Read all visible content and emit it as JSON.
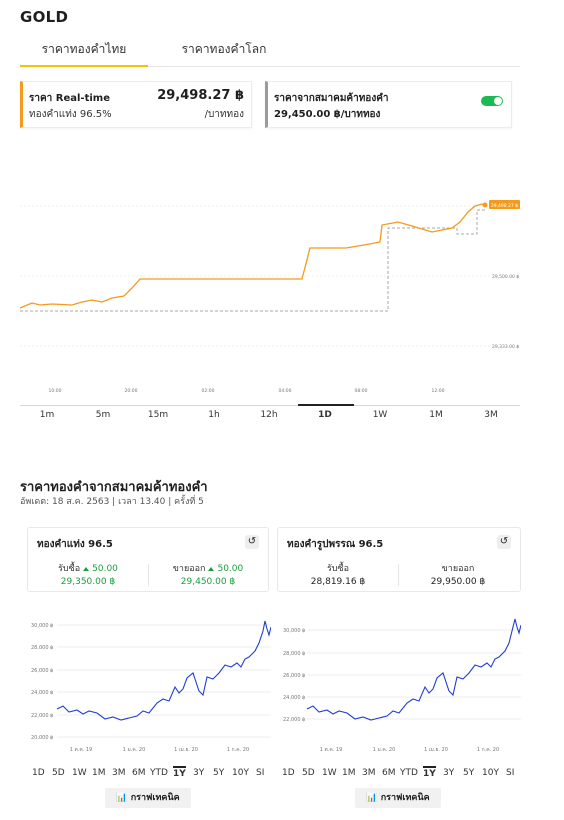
{
  "header": {
    "title": "GOLD"
  },
  "tabs": [
    {
      "label": "ราคาทองคำไทย"
    },
    {
      "label": "ราคาทองคำโลก"
    }
  ],
  "realtime_card": {
    "label": "ราคา Real-time",
    "sub": "ทองคำแท่ง 96.5%",
    "price": "29,498.27 ฿",
    "unit": "/บาททอง"
  },
  "association_card": {
    "label": "ราคาจากสมาคมค้าทองคำ",
    "price": "29,450.00 ฿/บาททอง"
  },
  "main_chart": {
    "x_ticks": [
      "10:00",
      "20:00",
      "02:00",
      "04:00",
      "08:00",
      "12:00"
    ],
    "y_ticks": [
      "29,500.00 ฿",
      "29,333.00 ฿"
    ],
    "current_tag": "29,498.27 ฿"
  },
  "ranges": [
    "1m",
    "5m",
    "15m",
    "1h",
    "12h",
    "1D",
    "1W",
    "1M",
    "3M"
  ],
  "active_range": "1D",
  "section": {
    "title": "ราคาทองคำจากสมาคมค้าทองคำ",
    "subtitle": "อัพเดต: 18 ส.ค. 2563 | เวลา 13.40 | ครั้งที่ 5"
  },
  "cards": [
    {
      "title": "ทองคำแท่ง 96.5",
      "buy_label": "รับซื้อ",
      "buy_change": "50.00",
      "buy_price": "29,350.00 ฿",
      "sell_label": "ขายออก",
      "sell_change": "50.00",
      "sell_price": "29,450.00 ฿"
    },
    {
      "title": "ทองคำรูปพรรณ 96.5",
      "buy_label": "รับซื้อ",
      "buy_price": "28,819.16 ฿",
      "sell_label": "ขายออก",
      "sell_price": "29,950.00 ฿"
    }
  ],
  "mini_chart": {
    "y_ticks": [
      "30,000 ฿",
      "28,000 ฿",
      "26,000 ฿",
      "24,000 ฿",
      "22,000 ฿",
      "20,000 ฿"
    ],
    "x_ticks": [
      "1 ต.ค. 19",
      "1 ม.ค. 20",
      "1 เม.ย. 20",
      "1 ก.ค. 20"
    ]
  },
  "mini_ranges": [
    "1D",
    "5D",
    "1W",
    "1M",
    "3M",
    "6M",
    "YTD",
    "1Y",
    "3Y",
    "5Y",
    "10Y",
    "SI"
  ],
  "mini_active": "1Y",
  "tech_button": "กราฟเทคนิค",
  "colors": {
    "accent": "#f49a1c",
    "toggle_on": "#1db954",
    "positive": "#1a9e3c",
    "mini_line": "#1f3fd1",
    "tab_underline": "#f5c400"
  }
}
